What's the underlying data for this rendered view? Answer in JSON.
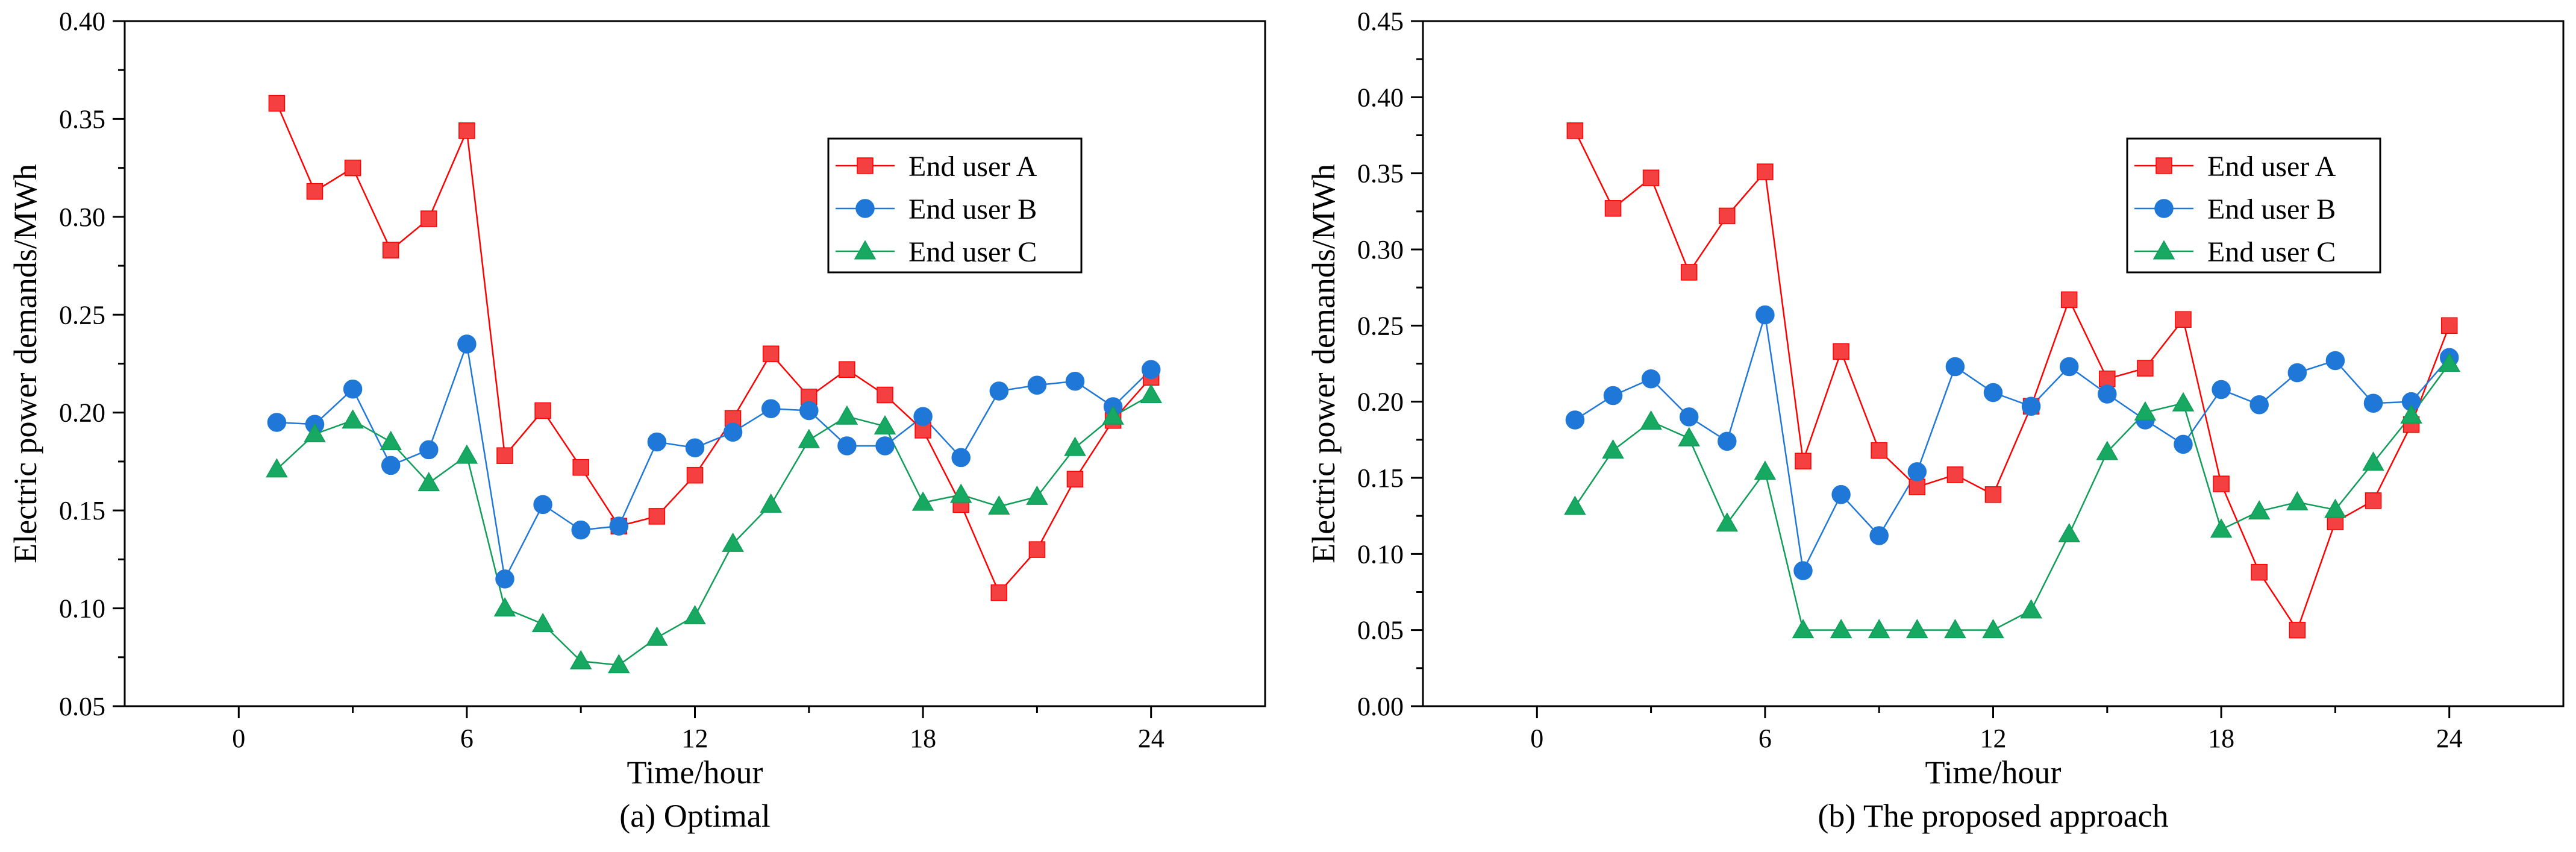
{
  "chart_data": [
    {
      "type": "line",
      "caption": "(a) Optimal",
      "xlabel": "Time/hour",
      "ylabel": "Electric power demands/MWh",
      "xlim": [
        -3,
        27
      ],
      "ylim": [
        0.05,
        0.4
      ],
      "xticks": [
        0,
        6,
        12,
        18,
        24
      ],
      "yticks": [
        0.05,
        0.1,
        0.15,
        0.2,
        0.25,
        0.3,
        0.35,
        0.4
      ],
      "legend_position": "top-right",
      "x": [
        1,
        2,
        3,
        4,
        5,
        6,
        7,
        8,
        9,
        10,
        11,
        12,
        13,
        14,
        15,
        16,
        17,
        18,
        19,
        20,
        21,
        22,
        23,
        24
      ],
      "series": [
        {
          "name": "End user A",
          "color": "#ff0000",
          "fill": "#f44040",
          "marker": "square",
          "values": [
            0.358,
            0.313,
            0.325,
            0.283,
            0.299,
            0.344,
            0.178,
            0.201,
            0.172,
            0.142,
            0.147,
            0.168,
            0.197,
            0.23,
            0.208,
            0.222,
            0.209,
            0.191,
            0.153,
            0.108,
            0.13,
            0.166,
            0.196,
            0.218
          ]
        },
        {
          "name": "End user B",
          "color": "#1f78d8",
          "fill": "#1f78d8",
          "marker": "circle",
          "values": [
            0.195,
            0.194,
            0.212,
            0.173,
            0.181,
            0.235,
            0.115,
            0.153,
            0.14,
            0.142,
            0.185,
            0.182,
            0.19,
            0.202,
            0.201,
            0.183,
            0.183,
            0.198,
            0.177,
            0.211,
            0.214,
            0.216,
            0.203,
            0.222
          ]
        },
        {
          "name": "End user C",
          "color": "#109d58",
          "fill": "#17a862",
          "marker": "triangle",
          "values": [
            0.171,
            0.189,
            0.196,
            0.185,
            0.164,
            0.178,
            0.1,
            0.092,
            0.073,
            0.071,
            0.085,
            0.096,
            0.133,
            0.153,
            0.186,
            0.198,
            0.193,
            0.154,
            0.158,
            0.152,
            0.157,
            0.182,
            0.198,
            0.209
          ]
        }
      ]
    },
    {
      "type": "line",
      "caption": "(b) The proposed approach",
      "xlabel": "Time/hour",
      "ylabel": "Electric power demands/MWh",
      "xlim": [
        -3,
        27
      ],
      "ylim": [
        0.0,
        0.45
      ],
      "xticks": [
        0,
        6,
        12,
        18,
        24
      ],
      "yticks": [
        0.0,
        0.05,
        0.1,
        0.15,
        0.2,
        0.25,
        0.3,
        0.35,
        0.4,
        0.45
      ],
      "legend_position": "top-right",
      "x": [
        1,
        2,
        3,
        4,
        5,
        6,
        7,
        8,
        9,
        10,
        11,
        12,
        13,
        14,
        15,
        16,
        17,
        18,
        19,
        20,
        21,
        22,
        23,
        24
      ],
      "series": [
        {
          "name": "End user A",
          "color": "#ff0000",
          "fill": "#f44040",
          "marker": "square",
          "values": [
            0.378,
            0.327,
            0.347,
            0.285,
            0.322,
            0.351,
            0.161,
            0.233,
            0.168,
            0.144,
            0.152,
            0.139,
            0.197,
            0.267,
            0.215,
            0.222,
            0.254,
            0.146,
            0.088,
            0.05,
            0.121,
            0.135,
            0.185,
            0.25
          ]
        },
        {
          "name": "End user B",
          "color": "#1f78d8",
          "fill": "#1f78d8",
          "marker": "circle",
          "values": [
            0.188,
            0.204,
            0.215,
            0.19,
            0.174,
            0.257,
            0.089,
            0.139,
            0.112,
            0.154,
            0.223,
            0.206,
            0.197,
            0.223,
            0.205,
            0.188,
            0.172,
            0.208,
            0.198,
            0.219,
            0.227,
            0.199,
            0.2,
            0.229
          ]
        },
        {
          "name": "End user C",
          "color": "#109d58",
          "fill": "#17a862",
          "marker": "triangle",
          "values": [
            0.131,
            0.168,
            0.187,
            0.176,
            0.12,
            0.154,
            0.05,
            0.05,
            0.05,
            0.05,
            0.05,
            0.05,
            0.063,
            0.113,
            0.167,
            0.193,
            0.199,
            0.116,
            0.128,
            0.134,
            0.129,
            0.16,
            0.191,
            0.225
          ]
        }
      ]
    }
  ]
}
